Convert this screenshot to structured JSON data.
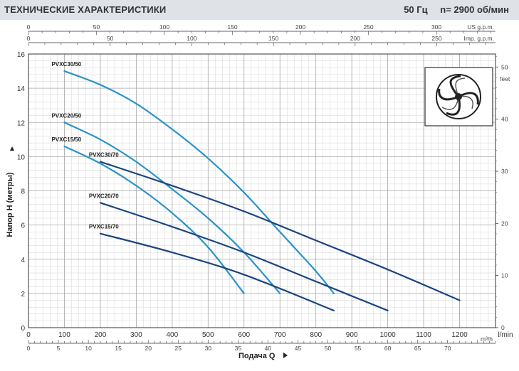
{
  "header": {
    "title": "ТЕХНИЧЕСКИЕ ХАРАКТЕРИСТИКИ",
    "freq": "50 Гц",
    "speed": "n= 2900  об/мин"
  },
  "chart_data": {
    "type": "line",
    "title": "ТЕХНИЧЕСКИЕ ХАРАКТЕРИСТИКИ",
    "xlabel": "Подача Q",
    "ylabel": "Напор H (метры)",
    "xlim": [
      0,
      1300
    ],
    "ylim": [
      0,
      16
    ],
    "x_unit": "l/min",
    "x_ticks": [
      0,
      100,
      200,
      300,
      400,
      500,
      600,
      700,
      800,
      900,
      1000,
      1100,
      1200
    ],
    "y_ticks": [
      0,
      2,
      4,
      6,
      8,
      10,
      12,
      14,
      16
    ],
    "grid": true,
    "secondary_axes": {
      "us_gpm": {
        "label": "US g.p.m.",
        "ticks": [
          0,
          50,
          100,
          150,
          200,
          250,
          300
        ]
      },
      "imp_gpm": {
        "label": "Imp. g.p.m.",
        "ticks": [
          0,
          50,
          100,
          150,
          200,
          250
        ]
      },
      "m3h": {
        "label": "m³/h",
        "ticks": [
          0,
          5,
          10,
          15,
          20,
          25,
          30,
          35,
          40,
          45,
          50,
          55,
          60,
          65,
          70
        ]
      },
      "feet": {
        "label": "feet",
        "ticks": [
          0,
          10,
          20,
          30,
          40,
          50
        ]
      }
    },
    "series": [
      {
        "name": "PVXC30/50",
        "color": "#2a93c9",
        "x": [
          100,
          200,
          300,
          400,
          500,
          600,
          700,
          800,
          850
        ],
        "y": [
          15.0,
          14.2,
          13.1,
          11.6,
          9.9,
          7.9,
          5.6,
          3.3,
          2.0
        ]
      },
      {
        "name": "PVXC20/50",
        "color": "#2a93c9",
        "x": [
          100,
          200,
          300,
          400,
          500,
          600,
          700
        ],
        "y": [
          12.0,
          11.0,
          9.7,
          8.1,
          6.4,
          4.4,
          2.0
        ]
      },
      {
        "name": "PVXC15/50",
        "color": "#2a93c9",
        "x": [
          100,
          200,
          300,
          400,
          500,
          600
        ],
        "y": [
          10.6,
          9.6,
          8.3,
          6.7,
          4.7,
          2.0
        ]
      },
      {
        "name": "PVXC30/70",
        "color": "#1a4480",
        "x": [
          200,
          400,
          600,
          800,
          1000,
          1200
        ],
        "y": [
          9.7,
          8.3,
          6.8,
          5.1,
          3.4,
          1.6
        ]
      },
      {
        "name": "PVXC20/70",
        "color": "#1a4480",
        "x": [
          200,
          400,
          600,
          800,
          1000
        ],
        "y": [
          7.3,
          5.9,
          4.4,
          2.7,
          1.0
        ]
      },
      {
        "name": "PVXC15/70",
        "color": "#1a4480",
        "x": [
          200,
          400,
          600,
          850
        ],
        "y": [
          5.5,
          4.4,
          3.1,
          1.0
        ]
      }
    ]
  },
  "icons": {
    "impeller": "impeller-icon"
  }
}
